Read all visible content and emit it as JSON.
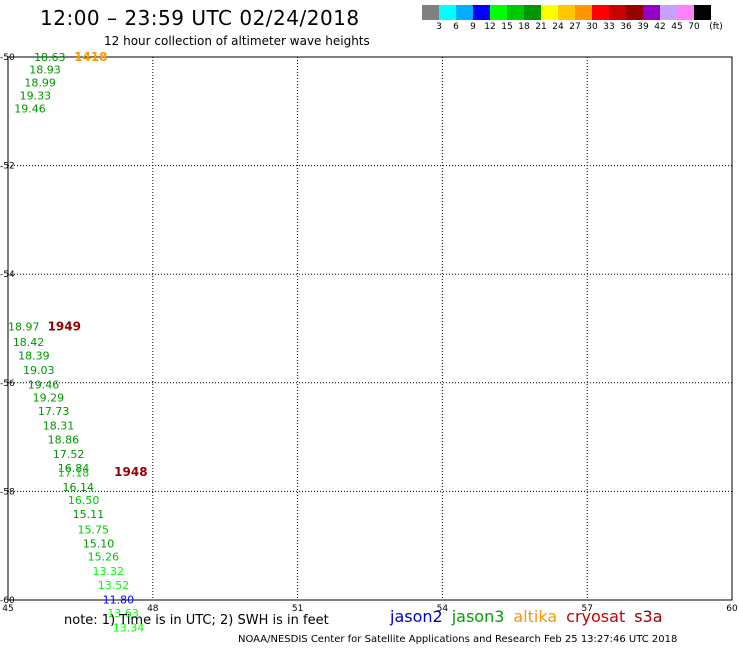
{
  "header": {
    "title": "12:00 – 23:59 UTC 02/24/2018",
    "subtitle": "12 hour collection of altimeter wave heights"
  },
  "legend": {
    "colors": [
      "#808080",
      "#00ffff",
      "#00b0ff",
      "#0000ff",
      "#00ff00",
      "#00c800",
      "#009600",
      "#ffff00",
      "#ffc800",
      "#ff9600",
      "#ff0000",
      "#c80000",
      "#960000",
      "#9600c8",
      "#c8a0ff",
      "#ff80ff",
      "#000000"
    ],
    "labels": [
      "3",
      "6",
      "9",
      "12",
      "15",
      "18",
      "21",
      "24",
      "27",
      "30",
      "33",
      "36",
      "39",
      "42",
      "45",
      "70",
      "(ft)"
    ]
  },
  "map_data": {
    "x_ticks": [
      "45",
      "48",
      "51",
      "54",
      "57",
      "60"
    ],
    "y_ticks": [
      "-50",
      "-52",
      "-54",
      "-56",
      "-58",
      "-60"
    ],
    "lon_range": [
      45,
      60
    ],
    "lat_range": [
      -50,
      -60
    ],
    "markers": [
      {
        "text": "18.63",
        "lon": 45.54,
        "lat": -50.0,
        "color": "#009600"
      },
      {
        "text": "1418",
        "lon": 46.37,
        "lat": -50.0,
        "color": "#ff9600",
        "bold": true
      },
      {
        "text": "18.93",
        "lon": 45.44,
        "lat": -50.23,
        "color": "#009600"
      },
      {
        "text": "18.99",
        "lon": 45.34,
        "lat": -50.47,
        "color": "#009600"
      },
      {
        "text": "19.33",
        "lon": 45.24,
        "lat": -50.71,
        "color": "#009600"
      },
      {
        "text": "19.46",
        "lon": 45.13,
        "lat": -50.95,
        "color": "#009600"
      },
      {
        "text": "18.97",
        "lon": 45.0,
        "lat": -54.96,
        "color": "#009600"
      },
      {
        "text": "1949",
        "lon": 45.82,
        "lat": -54.96,
        "color": "#960000",
        "bold": true
      },
      {
        "text": "18.42",
        "lon": 45.1,
        "lat": -55.25,
        "color": "#009600"
      },
      {
        "text": "18.39",
        "lon": 45.21,
        "lat": -55.5,
        "color": "#009600"
      },
      {
        "text": "19.03",
        "lon": 45.31,
        "lat": -55.76,
        "color": "#009600"
      },
      {
        "text": "19.46",
        "lon": 45.41,
        "lat": -56.03,
        "color": "#009600"
      },
      {
        "text": "19.29",
        "lon": 45.51,
        "lat": -56.27,
        "color": "#009600"
      },
      {
        "text": "17.73",
        "lon": 45.62,
        "lat": -56.52,
        "color": "#009600"
      },
      {
        "text": "18.31",
        "lon": 45.72,
        "lat": -56.79,
        "color": "#009600"
      },
      {
        "text": "18.86",
        "lon": 45.82,
        "lat": -57.04,
        "color": "#009600"
      },
      {
        "text": "17.52",
        "lon": 45.93,
        "lat": -57.31,
        "color": "#009600"
      },
      {
        "text": "16.84",
        "lon": 46.03,
        "lat": -57.57,
        "color": "#009600"
      },
      {
        "text": "17.18",
        "lon": 46.03,
        "lat": -57.65,
        "color": "#00c800"
      },
      {
        "text": "1948",
        "lon": 47.2,
        "lat": -57.64,
        "color": "#960000",
        "bold": true
      },
      {
        "text": "16.14",
        "lon": 46.13,
        "lat": -57.92,
        "color": "#009600"
      },
      {
        "text": "16.50",
        "lon": 46.24,
        "lat": -58.16,
        "color": "#00c800"
      },
      {
        "text": "15.11",
        "lon": 46.34,
        "lat": -58.42,
        "color": "#009600"
      },
      {
        "text": "15.75",
        "lon": 46.44,
        "lat": -58.7,
        "color": "#00c800"
      },
      {
        "text": "15.10",
        "lon": 46.55,
        "lat": -58.96,
        "color": "#009600"
      },
      {
        "text": "15.26",
        "lon": 46.65,
        "lat": -59.2,
        "color": "#00c800"
      },
      {
        "text": "13.32",
        "lon": 46.75,
        "lat": -59.47,
        "color": "#00ff00"
      },
      {
        "text": "13.52",
        "lon": 46.86,
        "lat": -59.72,
        "color": "#00ff00"
      },
      {
        "text": "11.80",
        "lon": 46.96,
        "lat": -59.99,
        "color": "#0000ff"
      },
      {
        "text": "13.63",
        "lon": 47.06,
        "lat": -60.24,
        "color": "#00ff00"
      },
      {
        "text": "13.34",
        "lon": 47.17,
        "lat": -60.51,
        "color": "#00ff00"
      }
    ]
  },
  "footer": {
    "note": "note:  1) Time is in UTC;  2) SWH is in feet",
    "satellites": [
      {
        "name": "jason2",
        "color": "#0000c8"
      },
      {
        "name": "jason3",
        "color": "#00a000"
      },
      {
        "name": "altika",
        "color": "#ff9600"
      },
      {
        "name": "cryosat",
        "color": "#c80000"
      },
      {
        "name": "s3a",
        "color": "#960000"
      }
    ],
    "credit": "NOAA/NESDIS Center for Satellite Applications and Research     Feb 25 13:27:46 UTC 2018"
  }
}
